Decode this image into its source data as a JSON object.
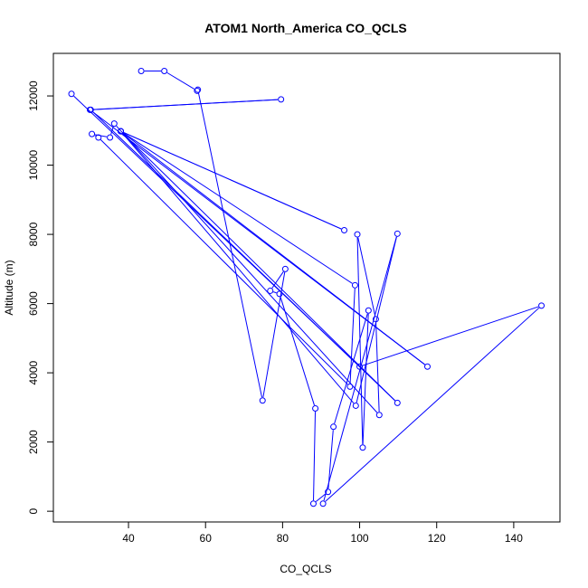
{
  "chart_data": {
    "type": "line",
    "title": "ATOM1 North_America CO_QCLS",
    "xlabel": "CO_QCLS",
    "ylabel": "Altitude (m)",
    "xlim": [
      20.5,
      152
    ],
    "ylim": [
      -310,
      13230
    ],
    "xticks": [
      40,
      60,
      80,
      100,
      120,
      140
    ],
    "yticks": [
      0,
      2000,
      4000,
      6000,
      8000,
      10000,
      12000
    ],
    "grid": false,
    "legend": "none",
    "color": "#0000ff",
    "points_style": "lines-with-open-circles",
    "series": [
      {
        "points": [
          [
            43.3,
            12720
          ],
          [
            49.3,
            12720
          ],
          [
            57.8,
            12150
          ],
          [
            58.0,
            12180
          ],
          [
            74.8,
            3200
          ],
          [
            80.7,
            7000
          ],
          [
            76.8,
            6370
          ],
          [
            79.2,
            6280
          ],
          [
            88.5,
            2970
          ],
          [
            88.0,
            220
          ],
          [
            91.8,
            560
          ],
          [
            93.2,
            2440
          ],
          [
            102.3,
            5800
          ],
          [
            100.8,
            1840
          ],
          [
            99.4,
            8000
          ],
          [
            104.2,
            5550
          ],
          [
            105.1,
            2780
          ],
          [
            36.3,
            11200
          ],
          [
            35.2,
            10800
          ],
          [
            30.5,
            10900
          ],
          [
            32.2,
            10800
          ],
          [
            97.5,
            3600
          ],
          [
            98.8,
            6530
          ],
          [
            38.0,
            10980
          ],
          [
            117.6,
            4180
          ],
          [
            30.0,
            11600
          ],
          [
            79.6,
            11900
          ],
          [
            30.2,
            11600
          ],
          [
            109.8,
            3130
          ],
          [
            38.0,
            10980
          ],
          [
            96.0,
            8120
          ],
          [
            38.0,
            10980
          ],
          [
            99.0,
            3050
          ],
          [
            109.8,
            8020
          ],
          [
            90.5,
            220
          ],
          [
            147.2,
            5940
          ],
          [
            100.0,
            4180
          ],
          [
            25.2,
            12060
          ]
        ]
      }
    ]
  }
}
